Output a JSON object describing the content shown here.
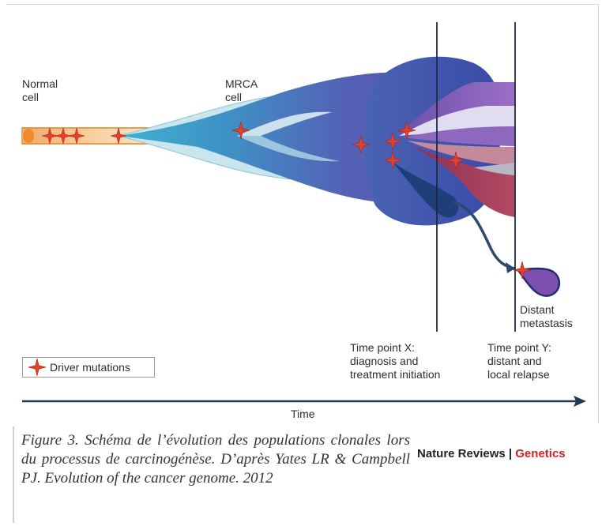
{
  "labels": {
    "normal_cell": "Normal\ncell",
    "mrca_cell": "MRCA\ncell",
    "time_x": "Time point X:\ndiagnosis and\ntreatment initiation",
    "time_y": "Time point Y:\ndistant and\nlocal relapse",
    "metastasis": "Distant\nmetastasis",
    "time_axis": "Time",
    "legend": "Driver mutations"
  },
  "caption": "Figure 3. Schéma de l’évolution des populations clonales lors du processus de carcinogénèse. D’après Yates LR & Campbell PJ. Evolution of the cancer genome. 2012",
  "journal": {
    "name": "Nature Reviews",
    "separator": " | ",
    "section": "Genetics"
  },
  "colors": {
    "orange_fill": "#f6c58e",
    "orange_edge": "#e88a2e",
    "teal_light": "#c7e5ec",
    "teal": "#2aa4c4",
    "blue_purple": "#5960b4",
    "navy": "#2e4e9c",
    "purple": "#7b4fae",
    "crimson": "#a53a56",
    "star": "#e4402c",
    "journal_red": "#d2232a"
  },
  "icons": [
    "driver-mutation-star-icon",
    "time-arrow-icon"
  ]
}
